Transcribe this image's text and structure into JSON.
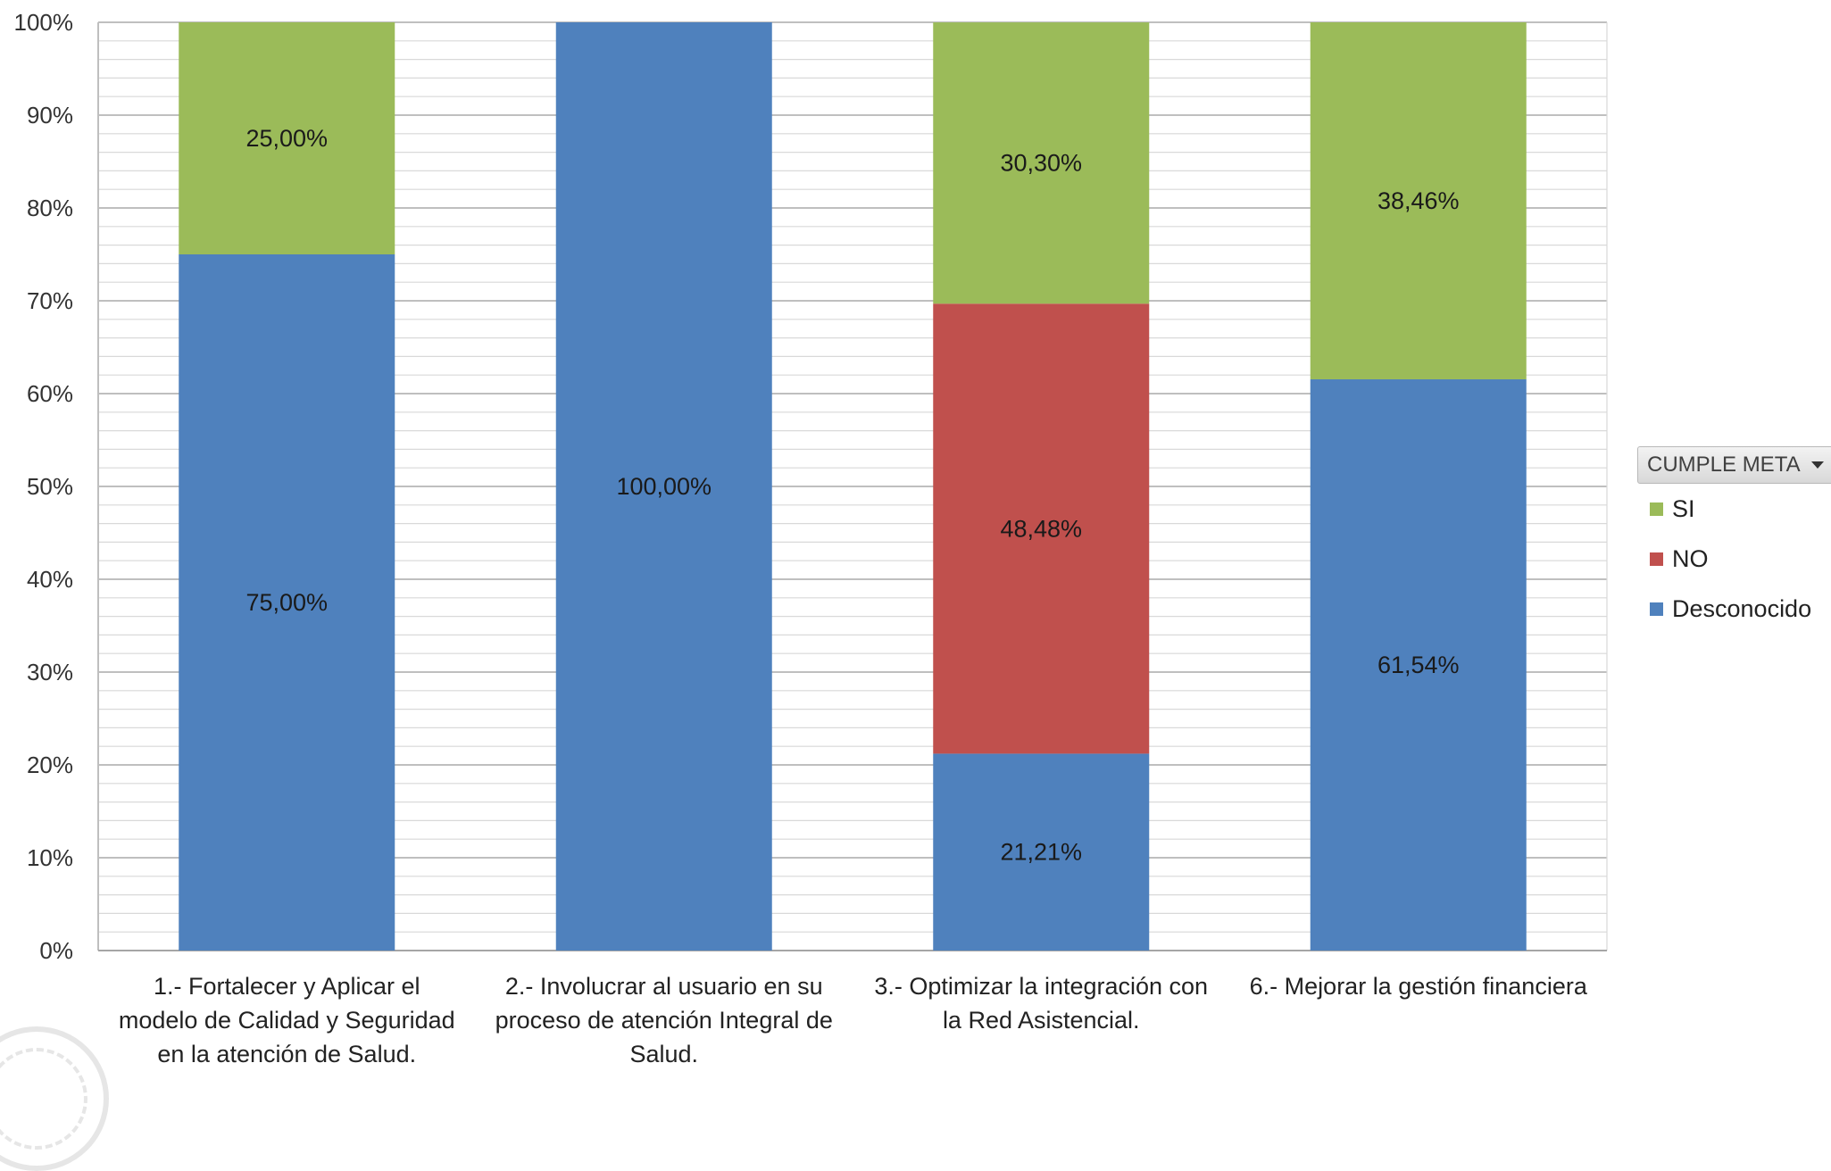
{
  "chart_data": {
    "type": "bar",
    "stacked": "percent",
    "categories": [
      "1.- Fortalecer y Aplicar el modelo de Calidad y Seguridad en la atención de Salud.",
      "2.- Involucrar al usuario en su proceso de atención Integral de Salud.",
      "3.- Optimizar la integración con la Red Asistencial.",
      "6.- Mejorar la gestión financiera"
    ],
    "category_lines": [
      [
        "1.- Fortalecer y Aplicar el",
        "modelo de Calidad y Seguridad",
        "en la atención de Salud."
      ],
      [
        "2.- Involucrar al usuario en su",
        "proceso de atención Integral de",
        "Salud."
      ],
      [
        "3.- Optimizar la integración con",
        "la Red Asistencial."
      ],
      [
        "6.- Mejorar la gestión financiera"
      ]
    ],
    "series": [
      {
        "name": "Desconocido",
        "color": "#4f81bd",
        "values": [
          75.0,
          100.0,
          21.21,
          61.54
        ],
        "labels": [
          "75,00%",
          "100,00%",
          "21,21%",
          "61,54%"
        ]
      },
      {
        "name": "NO",
        "color": "#c0504d",
        "values": [
          0,
          0,
          48.48,
          0
        ],
        "labels": [
          "",
          "",
          "48,48%",
          ""
        ]
      },
      {
        "name": "SI",
        "color": "#9bbb59",
        "values": [
          25.0,
          0,
          30.3,
          38.46
        ],
        "labels": [
          "25,00%",
          "",
          "30,30%",
          "38,46%"
        ]
      }
    ],
    "ylim": [
      0,
      100
    ],
    "y_ticks": [
      "0%",
      "10%",
      "20%",
      "30%",
      "40%",
      "50%",
      "60%",
      "70%",
      "80%",
      "90%",
      "100%"
    ],
    "grid": true,
    "legend_position": "right",
    "legend": {
      "title": "CUMPLE META",
      "items": [
        {
          "name": "SI",
          "color": "#9bbb59"
        },
        {
          "name": "NO",
          "color": "#c0504d"
        },
        {
          "name": "Desconocido",
          "color": "#4f81bd"
        }
      ]
    }
  }
}
